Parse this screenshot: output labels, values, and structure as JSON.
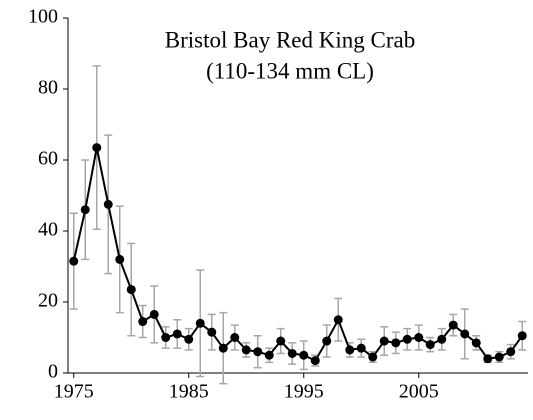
{
  "chart_data": {
    "type": "line",
    "title": "Bristol Bay Red King Crab",
    "subtitle": "(110-134 mm CL)",
    "categories": [
      "1975",
      null,
      null,
      null,
      null,
      null,
      null,
      null,
      null,
      null,
      "1985",
      null,
      null,
      null,
      null,
      null,
      null,
      null,
      null,
      null,
      "1995",
      null,
      null,
      null,
      null,
      null,
      null,
      null,
      null,
      null,
      "2005",
      null,
      null,
      null,
      null,
      null,
      null,
      null,
      null,
      null
    ],
    "series": [
      {
        "color": "#000000",
        "error_color": "#a6a6a6",
        "values": [
          31.5,
          46,
          63.5,
          47.5,
          32,
          23.5,
          14.5,
          16.5,
          10,
          11,
          9.5,
          14,
          11.5,
          7,
          10,
          6.5,
          6,
          5,
          9,
          5.5,
          5,
          3.5,
          9,
          15,
          6.5,
          7,
          4.5,
          9,
          8.5,
          9.5,
          10,
          8,
          9.5,
          13.5,
          11,
          8.5,
          4,
          4.5,
          6,
          10.5
        ],
        "errors": [
          13.5,
          14,
          23,
          19.5,
          15,
          13,
          4.5,
          8,
          3,
          4,
          3,
          15,
          5,
          10,
          3.5,
          2,
          4.5,
          2,
          3.5,
          3,
          4,
          1.5,
          4.5,
          6,
          2,
          2.5,
          1.5,
          4,
          3,
          3,
          3.5,
          2,
          3,
          3,
          7,
          2,
          1,
          1.5,
          2,
          4
        ]
      }
    ],
    "ylim": [
      0,
      100
    ],
    "yticks": [
      0,
      20,
      40,
      60,
      80,
      100
    ],
    "grid": false
  }
}
